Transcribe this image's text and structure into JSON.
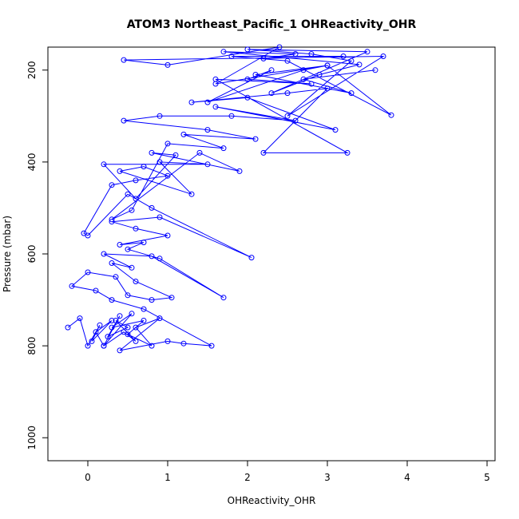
{
  "chart_data": {
    "type": "line",
    "title": "ATOM3 Northeast_Pacific_1 OHReactivity_OHR",
    "xlabel": "OHReactivity_OHR",
    "ylabel": "Pressure (mbar)",
    "xlim": [
      -0.5,
      5.1
    ],
    "ylim": [
      1050,
      150
    ],
    "y_reversed": true,
    "x_ticks": [
      0,
      1,
      2,
      3,
      4,
      5
    ],
    "y_ticks": [
      200,
      400,
      600,
      800,
      1000
    ],
    "grid": false,
    "legend": "none",
    "marker": "open-circle",
    "colors": {
      "series": "#0000ff",
      "axis": "#000000"
    },
    "series": [
      {
        "x": [
          -0.25,
          -0.1,
          0.0,
          0.15,
          0.05,
          0.3,
          0.1,
          0.2,
          0.4,
          0.25,
          0.5,
          0.35,
          0.6,
          0.45,
          0.2,
          0.55,
          0.3,
          0.7,
          0.5,
          0.8,
          0.6,
          0.9,
          0.4,
          1.0,
          1.2,
          1.55,
          0.7,
          0.3,
          0.1,
          -0.2,
          0.0,
          0.35,
          0.5,
          0.8,
          1.05,
          0.6,
          0.3,
          0.55,
          0.2,
          0.8,
          1.7,
          0.9,
          0.5,
          0.7,
          0.4,
          1.0,
          0.6,
          0.3,
          0.9,
          2.05,
          0.8,
          0.5,
          0.0,
          -0.05,
          0.3,
          0.6,
          1.0,
          0.7,
          0.4,
          1.3,
          0.9,
          1.5,
          0.2,
          0.6,
          1.1,
          0.8,
          1.9,
          1.4,
          0.3,
          0.55,
          1.0,
          1.7,
          1.2,
          2.1,
          1.5,
          0.45,
          0.9,
          1.8,
          2.6,
          1.6,
          3.1,
          2.0,
          1.3,
          2.5,
          3.0,
          2.2,
          3.25,
          1.6,
          2.8,
          2.0,
          2.3,
          1.5,
          2.7,
          3.0,
          3.8,
          2.5,
          1.8,
          3.2,
          2.2,
          2.6,
          1.7,
          3.4,
          2.9,
          2.3,
          3.5,
          2.0,
          2.8,
          3.3,
          2.5,
          3.7,
          0.45,
          1.0,
          2.4,
          1.6,
          3.0,
          2.1,
          3.3,
          2.7,
          3.6
        ],
        "y": [
          760,
          740,
          800,
          755,
          790,
          745,
          770,
          800,
          735,
          780,
          760,
          745,
          790,
          770,
          800,
          730,
          760,
          745,
          775,
          800,
          760,
          740,
          810,
          790,
          795,
          800,
          720,
          700,
          680,
          670,
          640,
          650,
          690,
          700,
          695,
          660,
          620,
          630,
          600,
          605,
          695,
          610,
          590,
          575,
          580,
          560,
          545,
          530,
          520,
          608,
          500,
          470,
          560,
          555,
          450,
          440,
          430,
          410,
          420,
          470,
          400,
          405,
          405,
          480,
          385,
          380,
          420,
          380,
          525,
          505,
          360,
          370,
          340,
          350,
          330,
          310,
          300,
          300,
          310,
          280,
          330,
          260,
          270,
          250,
          240,
          380,
          380,
          220,
          230,
          220,
          200,
          270,
          200,
          190,
          298,
          180,
          170,
          170,
          175,
          165,
          160,
          188,
          210,
          250,
          160,
          155,
          165,
          180,
          300,
          170,
          178,
          189,
          150,
          230,
          190,
          210,
          250,
          220,
          200
        ]
      }
    ]
  }
}
